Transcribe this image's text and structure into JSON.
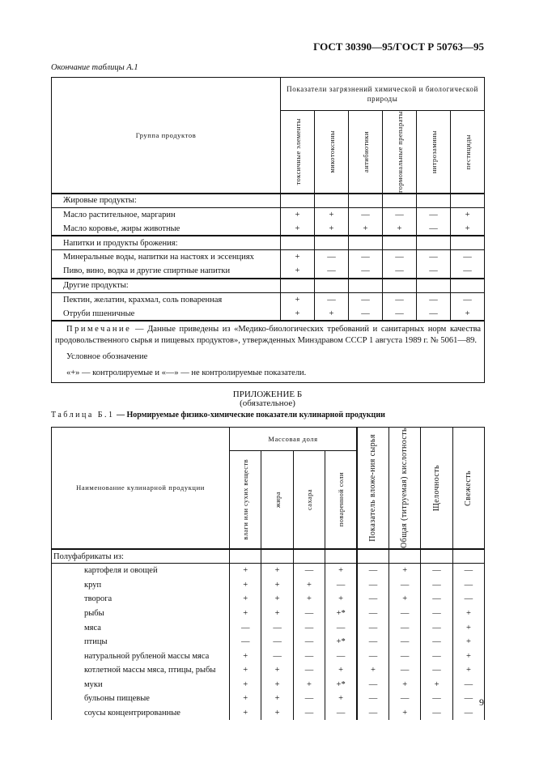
{
  "header": "ГОСТ 30390—95/ГОСТ Р 50763—95",
  "continuation": "Окончание таблицы А.1",
  "tableA1": {
    "group_header": "Группа продуктов",
    "indicators_header": "Показатели загрязнений химической и биологической природы",
    "columns": [
      "токсичные элементы",
      "микотоксины",
      "антибиотики",
      "гормональные препараты",
      "нитрозамины",
      "пестициды"
    ],
    "sections": [
      {
        "title": "Жировые продукты:",
        "rows": [
          {
            "name": "Масло растительное, маргарин",
            "values": [
              "+",
              "+",
              "—",
              "—",
              "—",
              "+"
            ]
          },
          {
            "name": "Масло коровье, жиры животные",
            "values": [
              "+",
              "+",
              "+",
              "+",
              "—",
              "+"
            ]
          }
        ]
      },
      {
        "title": "Напитки и продукты брожения:",
        "rows": [
          {
            "name": "Минеральные воды, напитки на настоях и эссенциях",
            "values": [
              "+",
              "—",
              "—",
              "—",
              "—",
              "—"
            ]
          },
          {
            "name": "Пиво, вино, водка и другие спиртные напитки",
            "values": [
              "+",
              "—",
              "—",
              "—",
              "—",
              "—"
            ]
          }
        ]
      },
      {
        "title": "Другие продукты:",
        "rows": [
          {
            "name": "Пектин, желатин, крахмал, соль поваренная",
            "values": [
              "+",
              "—",
              "—",
              "—",
              "—",
              "—"
            ]
          },
          {
            "name": "Отруби пшеничные",
            "values": [
              "+",
              "+",
              "—",
              "—",
              "—",
              "+"
            ]
          }
        ]
      }
    ],
    "note_label": "Примечание",
    "note_text": " — Данные приведены из «Медико-биологических требований и санитарных норм качества продовольственного сырья и пищевых продуктов», утвержденных Минздравом СССР 1 августа 1989 г. № 5061—89.",
    "legend_title": "Условное обозначение",
    "legend_text": "«+» — контролируемые и «—» — не контролируемые показатели."
  },
  "appendix": {
    "title": "ПРИЛОЖЕНИЕ Б",
    "subtitle": "(обязательное)"
  },
  "tableB1": {
    "caption_label": "Таблица Б.1",
    "caption_title": " — Нормируемые физико-химические показатели кулинарной продукции",
    "name_header": "Наименование кулинарной продукции",
    "mass_header": "Массовая доля",
    "mass_columns": [
      "влаги или сухих веществ",
      "жира",
      "сахара",
      "поваренной соли"
    ],
    "other_columns": [
      "Показатель вложе-ния сырья",
      "Общая (титруемая) кислотность",
      "Щелочность",
      "Свежесть"
    ],
    "section_title": "Полуфабрикаты из:",
    "rows": [
      {
        "name": "картофеля и овощей",
        "values": [
          "+",
          "+",
          "—",
          "+",
          "—",
          "+",
          "—",
          "—"
        ]
      },
      {
        "name": "круп",
        "values": [
          "+",
          "+",
          "+",
          "—",
          "—",
          "—",
          "—",
          "—"
        ]
      },
      {
        "name": "творога",
        "values": [
          "+",
          "+",
          "+",
          "+",
          "—",
          "+",
          "—",
          "—"
        ]
      },
      {
        "name": "рыбы",
        "values": [
          "+",
          "+",
          "—",
          "+*",
          "—",
          "—",
          "—",
          "+"
        ]
      },
      {
        "name": "мяса",
        "values": [
          "—",
          "—",
          "—",
          "—",
          "—",
          "—",
          "—",
          "+"
        ]
      },
      {
        "name": "птицы",
        "values": [
          "—",
          "—",
          "—",
          "+*",
          "—",
          "—",
          "—",
          "+"
        ]
      },
      {
        "name": "натуральной рубленой массы мяса",
        "values": [
          "+",
          "—",
          "—",
          "—",
          "—",
          "—",
          "—",
          "+"
        ]
      },
      {
        "name": "котлетной массы мяса, птицы, рыбы",
        "values": [
          "+",
          "+",
          "—",
          "+",
          "+",
          "—",
          "—",
          "+"
        ]
      },
      {
        "name": "муки",
        "values": [
          "+",
          "+",
          "+",
          "+*",
          "—",
          "+",
          "+",
          "—"
        ]
      },
      {
        "name": "бульоны пищевые",
        "values": [
          "+",
          "+",
          "—",
          "+",
          "—",
          "—",
          "—",
          "—"
        ]
      },
      {
        "name": "соусы концентрированные",
        "values": [
          "+",
          "+",
          "—",
          "—",
          "—",
          "+",
          "—",
          "—"
        ]
      }
    ]
  },
  "page_number": "9"
}
